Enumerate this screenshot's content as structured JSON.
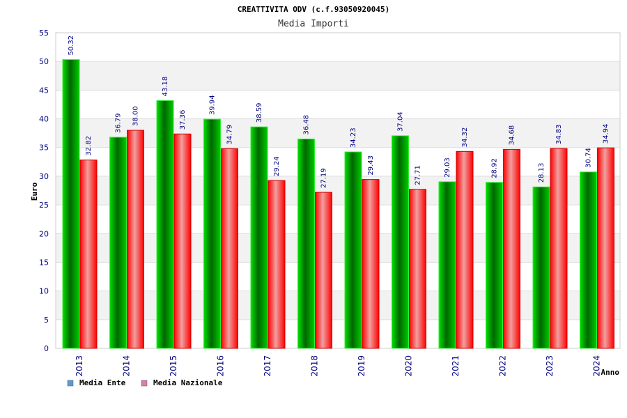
{
  "chart_data": {
    "type": "bar",
    "title": "CREATTIVITA ODV (c.f.93050920045)",
    "subtitle": "Media Importi",
    "xlabel": "Anno",
    "ylabel": "Euro",
    "ylim": [
      0,
      55
    ],
    "yticks": [
      0,
      5,
      10,
      15,
      20,
      25,
      30,
      35,
      40,
      45,
      50,
      55
    ],
    "grid": true,
    "legend_position": "bottom-left",
    "categories": [
      "2013",
      "2014",
      "2015",
      "2016",
      "2017",
      "2018",
      "2019",
      "2020",
      "2021",
      "2022",
      "2023",
      "2024"
    ],
    "series": [
      {
        "name": "Media Ente",
        "color": "#00aa00",
        "legend_color": "#5b9bd5",
        "values": [
          50.32,
          36.79,
          43.18,
          39.94,
          38.59,
          36.48,
          34.23,
          37.04,
          29.03,
          28.92,
          28.13,
          30.74
        ],
        "labels": [
          "50.32",
          "36.79",
          "43.18",
          "39.94",
          "38.59",
          "36.48",
          "34.23",
          "37.04",
          "29.03",
          "28.92",
          "28.13",
          "30.74"
        ]
      },
      {
        "name": "Media Nazionale",
        "color": "#ee1111",
        "legend_color": "#d87fb0",
        "values": [
          32.82,
          38.0,
          37.36,
          34.79,
          29.24,
          27.19,
          29.43,
          27.71,
          34.32,
          34.68,
          34.83,
          34.94
        ],
        "labels": [
          "32.82",
          "38.00",
          "37.36",
          "34.79",
          "29.24",
          "27.19",
          "29.43",
          "27.71",
          "34.32",
          "34.68",
          "34.83",
          "34.94"
        ]
      }
    ]
  }
}
